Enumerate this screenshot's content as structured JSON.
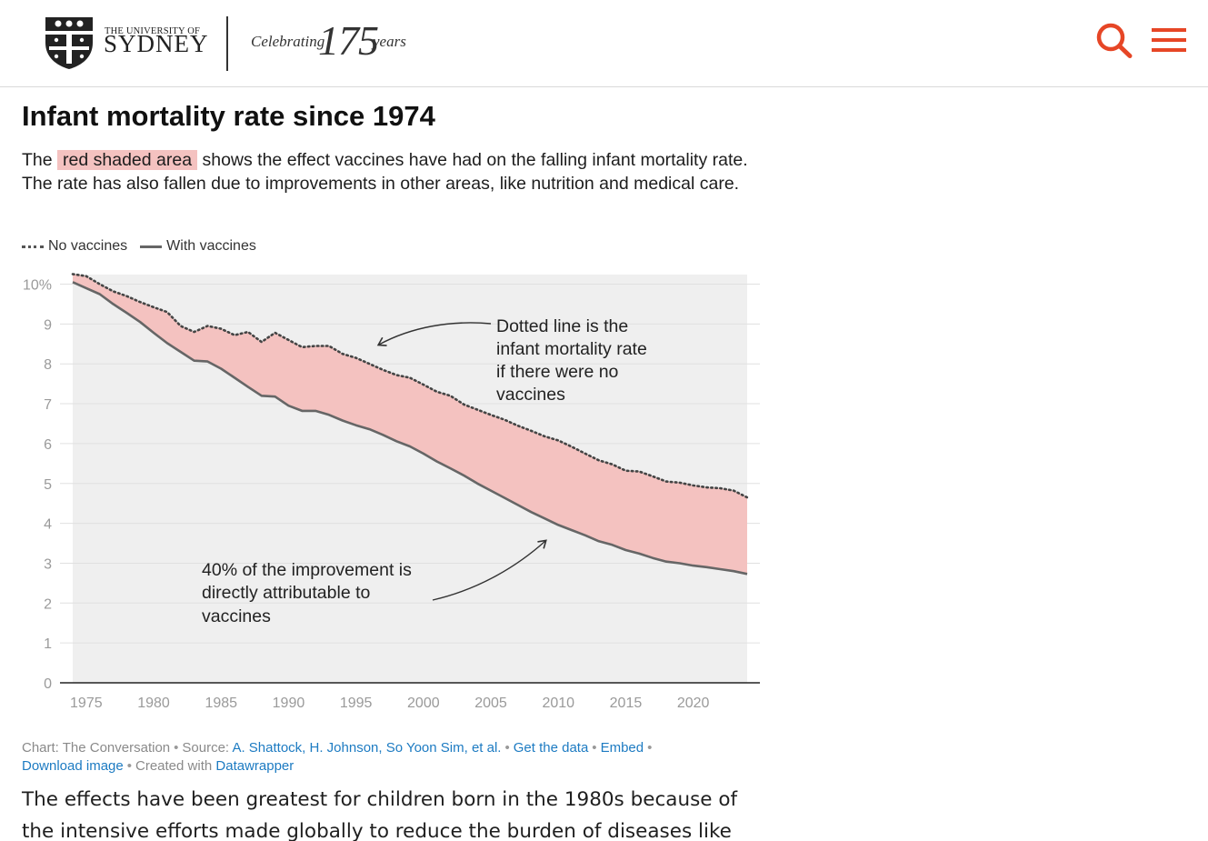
{
  "header": {
    "logo_small": "THE UNIVERSITY OF",
    "logo_big": "SYDNEY",
    "celebrating": "Celebrating",
    "anniversary": "175",
    "years": "years",
    "search_icon": "search-icon",
    "menu_icon": "hamburger-menu-icon",
    "accent_color": "#e64626"
  },
  "chart": {
    "title": "Infant mortality rate since 1974",
    "description_before": "The",
    "description_highlight": "red shaded area",
    "description_after": " shows the effect vaccines have had on the falling infant mortality rate. The rate has also fallen due to improvements in other areas, like nutrition and medical care.",
    "legend": [
      {
        "label": "No vaccines",
        "style": "dotted"
      },
      {
        "label": "With vaccines",
        "style": "solid"
      }
    ],
    "annotation_top": [
      "Dotted line is the",
      "infant mortality rate",
      "if there were no",
      "vaccines"
    ],
    "annotation_bottom": [
      "40% of the improvement is",
      "directly attributable to",
      "vaccines"
    ],
    "y_tick_labels": [
      "0",
      "1",
      "2",
      "3",
      "4",
      "5",
      "6",
      "7",
      "8",
      "9",
      "10%"
    ],
    "x_tick_labels": [
      "1975",
      "1980",
      "1985",
      "1990",
      "1995",
      "2000",
      "2005",
      "2010",
      "2015",
      "2020"
    ],
    "colors": {
      "shade": "#f4c2c0",
      "background_band": "#efefef",
      "line": "#666666",
      "gridline": "#e0e0e0"
    }
  },
  "chart_data": {
    "type": "area",
    "title": "Infant mortality rate since 1974",
    "xlabel": "",
    "ylabel": "",
    "xlim": [
      1974,
      2024
    ],
    "ylim": [
      0,
      10
    ],
    "x": [
      1974,
      1975,
      1976,
      1977,
      1978,
      1979,
      1980,
      1981,
      1982,
      1983,
      1984,
      1985,
      1986,
      1987,
      1988,
      1989,
      1990,
      1991,
      1992,
      1993,
      1994,
      1995,
      1996,
      1997,
      1998,
      1999,
      2000,
      2001,
      2002,
      2003,
      2004,
      2005,
      2006,
      2007,
      2008,
      2009,
      2010,
      2011,
      2012,
      2013,
      2014,
      2015,
      2016,
      2017,
      2018,
      2019,
      2020,
      2021,
      2022,
      2023,
      2024
    ],
    "series": [
      {
        "name": "No vaccines",
        "style": "dotted",
        "values": [
          10.25,
          10.2,
          10.0,
          9.82,
          9.7,
          9.55,
          9.42,
          9.3,
          8.95,
          8.8,
          8.95,
          8.88,
          8.72,
          8.8,
          8.55,
          8.78,
          8.6,
          8.42,
          8.45,
          8.45,
          8.25,
          8.15,
          8.0,
          7.85,
          7.72,
          7.65,
          7.48,
          7.3,
          7.2,
          6.98,
          6.85,
          6.72,
          6.6,
          6.45,
          6.32,
          6.18,
          6.08,
          5.92,
          5.75,
          5.58,
          5.48,
          5.32,
          5.3,
          5.18,
          5.05,
          5.02,
          4.95,
          4.9,
          4.88,
          4.82,
          4.65
        ]
      },
      {
        "name": "With vaccines",
        "style": "solid",
        "values": [
          10.05,
          9.9,
          9.75,
          9.5,
          9.28,
          9.05,
          8.78,
          8.52,
          8.3,
          8.08,
          8.06,
          7.88,
          7.65,
          7.42,
          7.2,
          7.18,
          6.95,
          6.82,
          6.82,
          6.72,
          6.58,
          6.46,
          6.36,
          6.22,
          6.06,
          5.93,
          5.75,
          5.55,
          5.38,
          5.2,
          5.0,
          4.82,
          4.64,
          4.46,
          4.28,
          4.12,
          3.96,
          3.83,
          3.7,
          3.55,
          3.46,
          3.33,
          3.24,
          3.13,
          3.04,
          3.0,
          2.94,
          2.9,
          2.85,
          2.8,
          2.73
        ]
      }
    ],
    "shaded_between_series": true,
    "grid": true,
    "legend_position": "top-left"
  },
  "footer": {
    "chart_credit": "Chart: The Conversation",
    "source_label": "Source:",
    "source_link": "A. Shattock, H. Johnson, So Yoon Sim, et al.",
    "get_data": "Get the data",
    "embed": "Embed",
    "download": "Download image",
    "created_with": "Created with",
    "datawrapper": "Datawrapper"
  },
  "article": {
    "paragraph": "The effects have been greatest for children born in the 1980s because of the intensive efforts made globally to reduce the burden of diseases like"
  }
}
